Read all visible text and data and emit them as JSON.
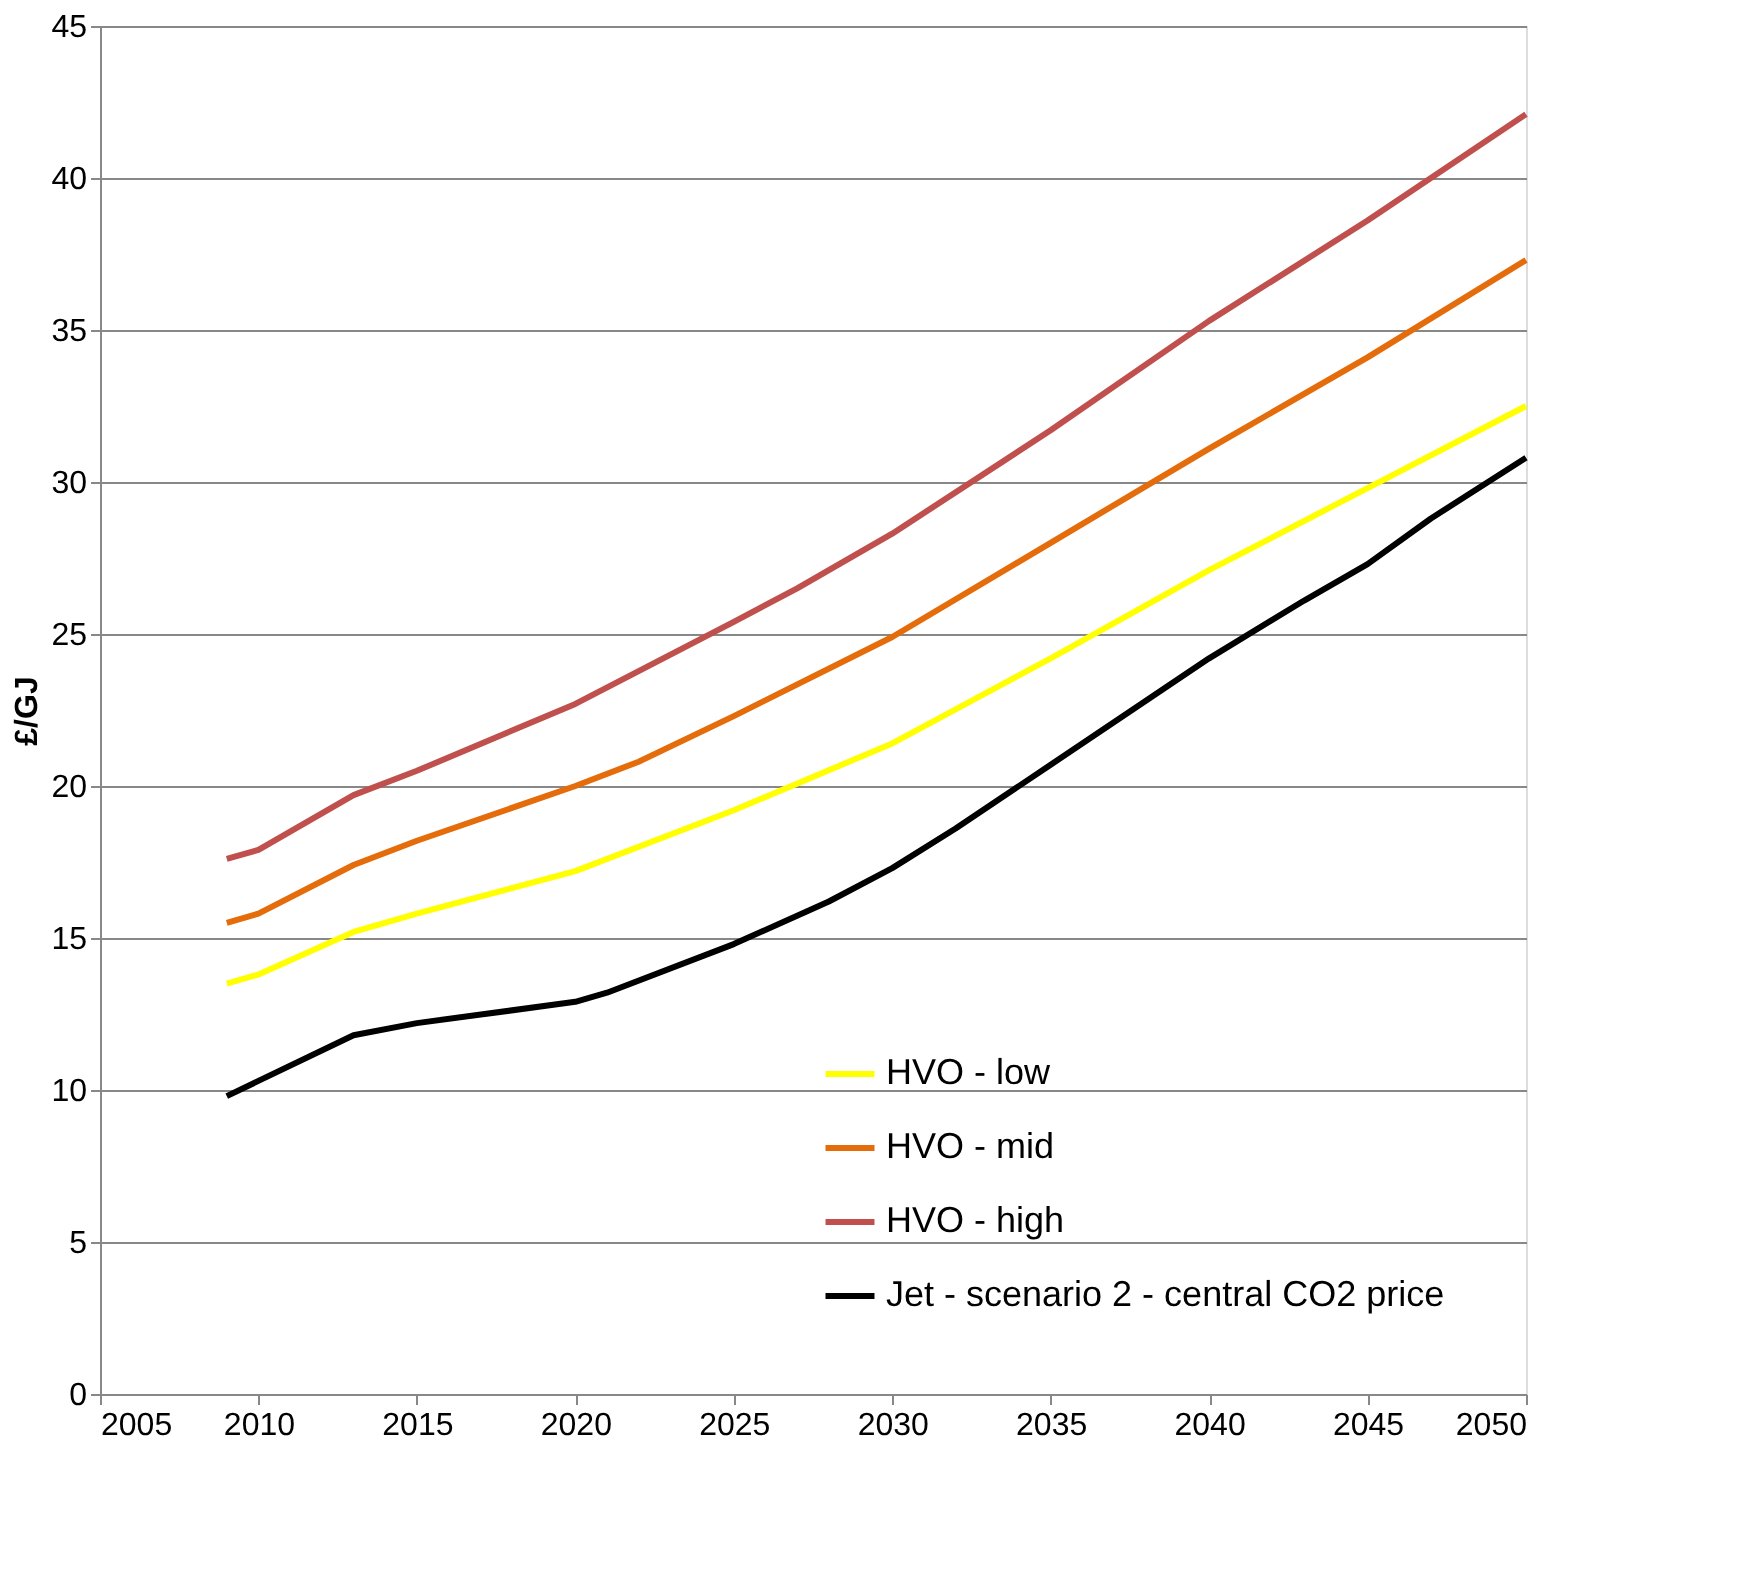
{
  "chart_data": {
    "type": "line",
    "ylabel": "£/GJ",
    "xlim": [
      2005,
      2050
    ],
    "xticks": [
      2005,
      2010,
      2015,
      2020,
      2025,
      2030,
      2035,
      2040,
      2045,
      2050
    ],
    "ylim": [
      0,
      45
    ],
    "yticks": [
      0,
      5,
      10,
      15,
      20,
      25,
      30,
      35,
      40,
      45
    ],
    "grid": "y",
    "legend": "bottom right",
    "marker": "none",
    "line_style": "solid",
    "series": [
      {
        "name": "HVO - low",
        "color": "#ffff00",
        "x": [
          2009,
          2010,
          2013,
          2015,
          2020,
          2025,
          2030,
          2035,
          2040,
          2045,
          2050
        ],
        "values": [
          13.5,
          13.8,
          15.2,
          15.8,
          17.2,
          19.2,
          21.4,
          24.2,
          27.1,
          29.8,
          32.5
        ]
      },
      {
        "name": "HVO - mid",
        "color": "#e46c0a",
        "x": [
          2009,
          2010,
          2013,
          2015,
          2020,
          2022,
          2025,
          2030,
          2035,
          2040,
          2045,
          2050
        ],
        "values": [
          15.5,
          15.8,
          17.4,
          18.2,
          20.0,
          20.8,
          22.3,
          24.9,
          28.0,
          31.1,
          34.1,
          37.3
        ]
      },
      {
        "name": "HVO - high",
        "color": "#c0504d",
        "x": [
          2009,
          2010,
          2013,
          2015,
          2020,
          2025,
          2027,
          2030,
          2035,
          2040,
          2045,
          2050
        ],
        "values": [
          17.6,
          17.9,
          19.7,
          20.5,
          22.7,
          25.4,
          26.5,
          28.3,
          31.7,
          35.3,
          38.6,
          42.1
        ]
      },
      {
        "name": "Jet - scenario 2 - central CO2 price",
        "color": "#000000",
        "x": [
          2009,
          2010,
          2013,
          2015,
          2020,
          2021,
          2025,
          2028,
          2030,
          2032,
          2035,
          2040,
          2043,
          2045,
          2047,
          2050
        ],
        "values": [
          9.8,
          10.3,
          11.8,
          12.2,
          12.9,
          13.2,
          14.8,
          16.2,
          17.3,
          18.6,
          20.7,
          24.2,
          26.1,
          27.3,
          28.8,
          30.8
        ]
      }
    ]
  }
}
